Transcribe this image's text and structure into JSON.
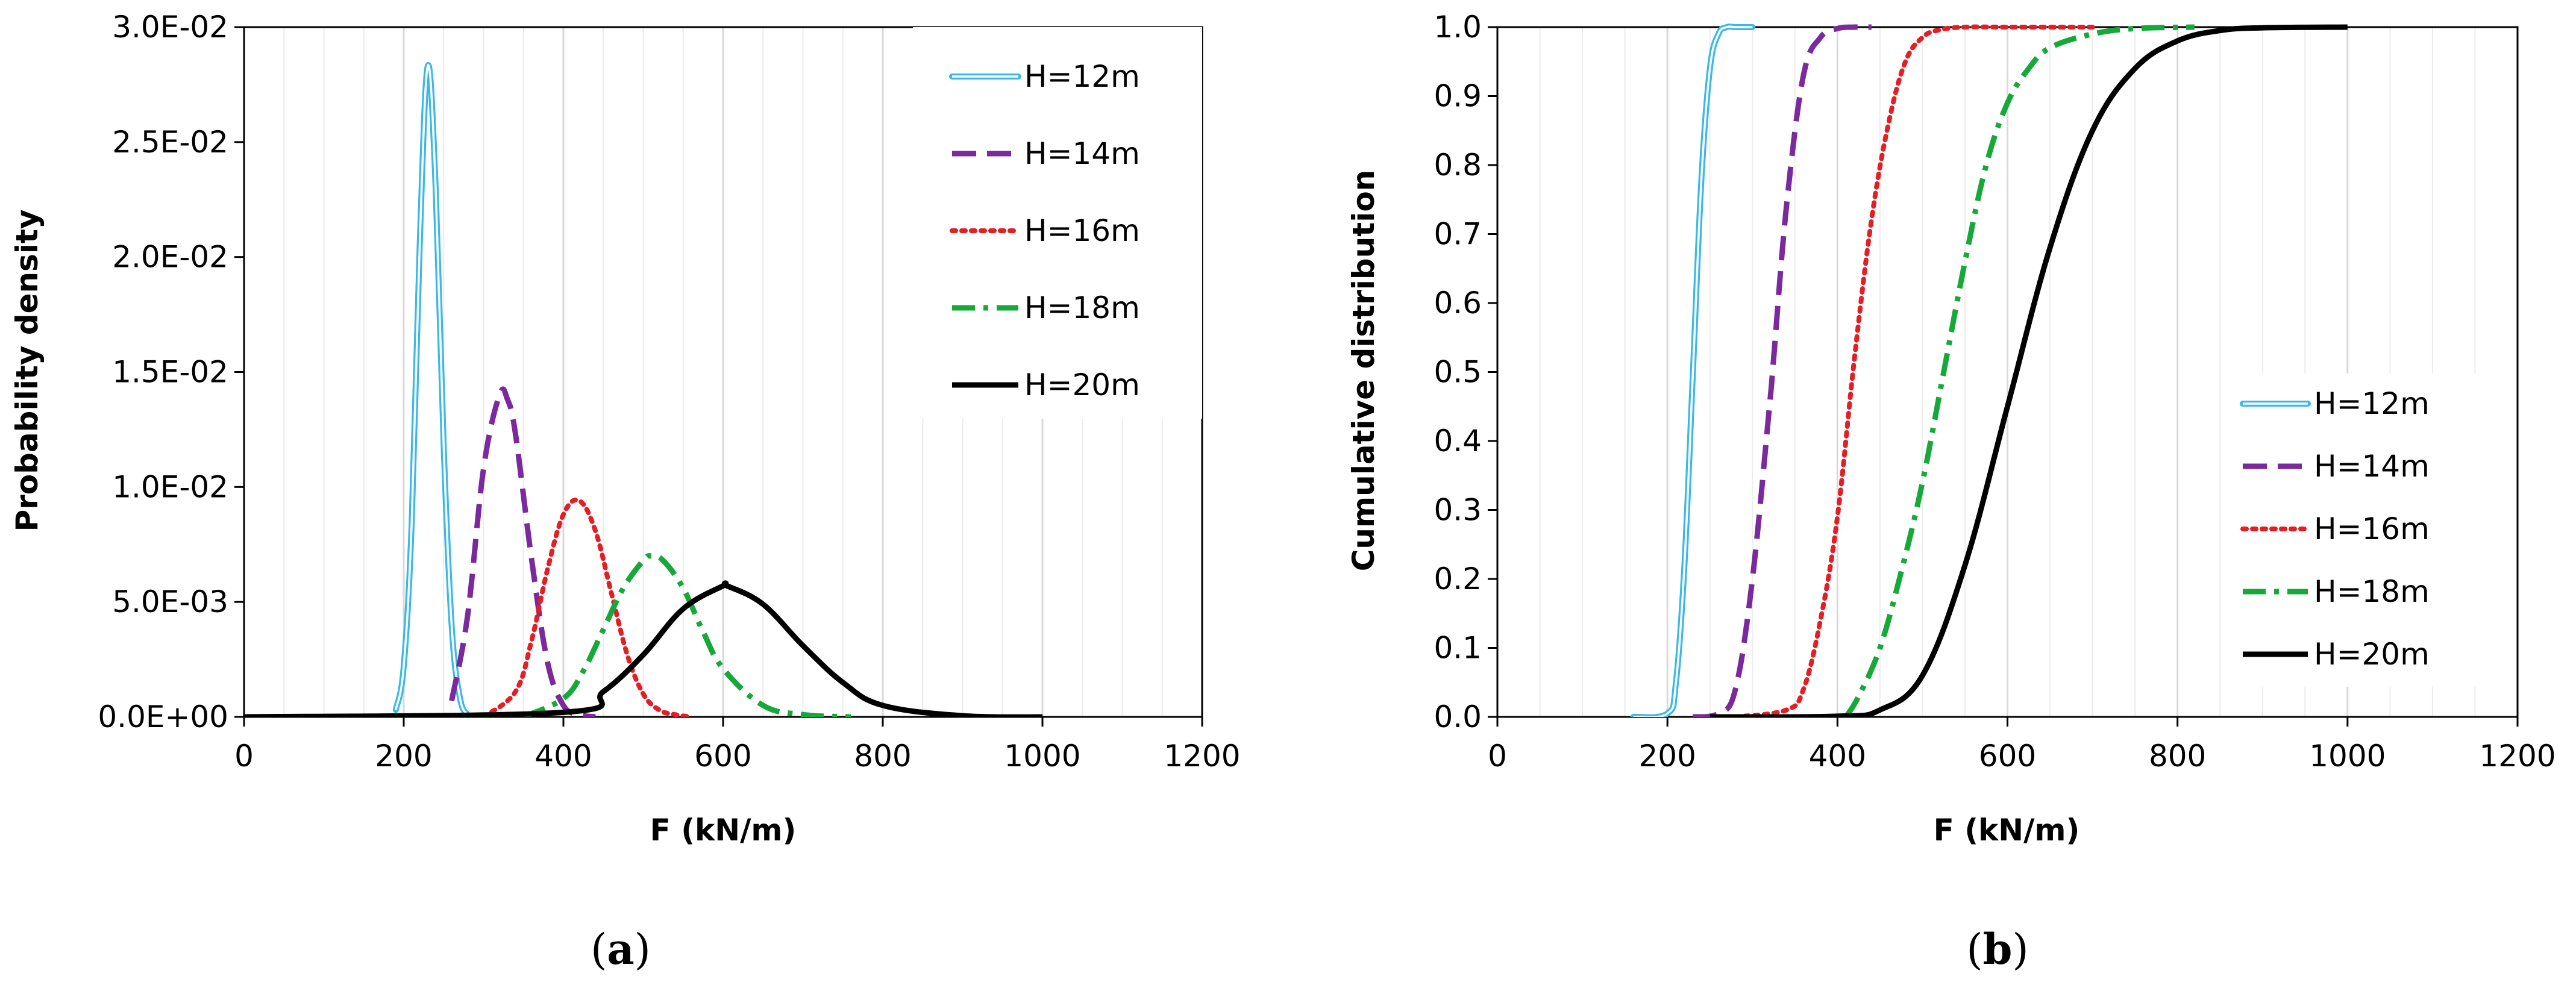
{
  "colors": {
    "H12": "#3bb8e6",
    "H14": "#7a2a9c",
    "H16": "#e31e24",
    "H18": "#17a83a",
    "H20": "#000000",
    "grid": "#d9d9d9",
    "axis": "#000000"
  },
  "chart_data": [
    {
      "id": "a",
      "type": "line",
      "panel_label": "a",
      "xlabel": "F (kN/m)",
      "ylabel": "Probability density",
      "xlim": [
        0,
        1200
      ],
      "ylim": [
        0,
        0.03
      ],
      "xticks": [
        0,
        200,
        400,
        600,
        800,
        1000,
        1200
      ],
      "xtick_labels": [
        "0",
        "200",
        "400",
        "600",
        "800",
        "1000",
        "1200"
      ],
      "yticks": [
        0,
        0.005,
        0.01,
        0.015,
        0.02,
        0.025,
        0.03
      ],
      "ytick_labels": [
        "0.0E+00",
        "5.0E-03",
        "1.0E-02",
        "1.5E-02",
        "2.0E-02",
        "2.5E-02",
        "3.0E-02"
      ],
      "grid": true,
      "legend": {
        "position": "top-right",
        "entries": [
          "H=12m",
          "H=14m",
          "H=16m",
          "H=18m",
          "H=20m"
        ]
      },
      "series": [
        {
          "name": "H=12m",
          "style": "double",
          "x_range": [
            190,
            300
          ],
          "peak_x": 232,
          "peak_y": 0.0284,
          "x": [
            190,
            200,
            210,
            220,
            230,
            240,
            250,
            260,
            270,
            280,
            290,
            300
          ],
          "y": [
            0.0003,
            0.0022,
            0.0085,
            0.0205,
            0.0283,
            0.023,
            0.0118,
            0.004,
            0.0009,
            0.0001,
            0,
            0
          ]
        },
        {
          "name": "H=14m",
          "style": "dashed",
          "x_range": [
            260,
            440
          ],
          "peak_x": 325,
          "peak_y": 0.0141,
          "x": [
            260,
            280,
            300,
            320,
            330,
            340,
            360,
            380,
            400,
            420,
            440
          ],
          "y": [
            0.0007,
            0.0044,
            0.0108,
            0.014,
            0.0138,
            0.0123,
            0.0069,
            0.0024,
            0.0005,
            0.0001,
            0
          ]
        },
        {
          "name": "H=16m",
          "style": "dotted",
          "x_range": [
            300,
            560
          ],
          "peak_x": 418,
          "peak_y": 0.0094,
          "x": [
            300,
            340,
            360,
            380,
            400,
            420,
            440,
            460,
            480,
            500,
            520,
            540,
            560
          ],
          "y": [
            0,
            0.0011,
            0.0033,
            0.0064,
            0.0088,
            0.0094,
            0.0081,
            0.0054,
            0.0027,
            0.001,
            0.0003,
            0.0001,
            0
          ]
        },
        {
          "name": "H=18m",
          "style": "dashdot",
          "x_range": [
            350,
            760
          ],
          "peak_x": 510,
          "peak_y": 0.007,
          "x": [
            350,
            400,
            425,
            450,
            475,
            500,
            510,
            525,
            550,
            575,
            600,
            650,
            700,
            760
          ],
          "y": [
            0,
            0.0008,
            0.002,
            0.0038,
            0.0056,
            0.0068,
            0.007,
            0.0068,
            0.0056,
            0.0037,
            0.0021,
            0.0005,
            0.0001,
            0
          ]
        },
        {
          "name": "H=20m",
          "style": "solid",
          "x_range": [
            0,
            1000
          ],
          "peak_x": 605,
          "peak_y": 0.0057,
          "x": [
            0,
            400,
            450,
            500,
            550,
            600,
            605,
            650,
            700,
            750,
            800,
            900,
            1000
          ],
          "y": [
            0,
            0.0002,
            0.0011,
            0.0027,
            0.0047,
            0.0057,
            0.0057,
            0.0049,
            0.0031,
            0.0015,
            0.0005,
            5e-05,
            0
          ]
        }
      ]
    },
    {
      "id": "b",
      "type": "line",
      "panel_label": "b",
      "xlabel": "F (kN/m)",
      "ylabel": "Cumulative distribution",
      "xlim": [
        0,
        1200
      ],
      "ylim": [
        0,
        1
      ],
      "xticks": [
        0,
        200,
        400,
        600,
        800,
        1000,
        1200
      ],
      "xtick_labels": [
        "0",
        "200",
        "400",
        "600",
        "800",
        "1000",
        "1200"
      ],
      "yticks": [
        0,
        0.1,
        0.2,
        0.3,
        0.4,
        0.5,
        0.6,
        0.7,
        0.8,
        0.9,
        1.0
      ],
      "ytick_labels": [
        "0.0",
        "0.1",
        "0.2",
        "0.3",
        "0.4",
        "0.5",
        "0.6",
        "0.7",
        "0.8",
        "0.9",
        "1.0"
      ],
      "grid": true,
      "legend": {
        "position": "right",
        "entries": [
          "H=12m",
          "H=14m",
          "H=16m",
          "H=18m",
          "H=20m"
        ]
      },
      "series": [
        {
          "name": "H=12m",
          "style": "double",
          "x_range": [
            160,
            300
          ],
          "x": [
            160,
            200,
            210,
            220,
            230,
            240,
            250,
            260,
            270,
            280,
            300
          ],
          "y": [
            0,
            0.005,
            0.05,
            0.22,
            0.5,
            0.78,
            0.94,
            0.99,
            1.0,
            1.0,
            1.0
          ]
        },
        {
          "name": "H=14m",
          "style": "dashed",
          "x_range": [
            230,
            440
          ],
          "x": [
            230,
            260,
            280,
            300,
            320,
            325,
            340,
            360,
            380,
            400,
            420,
            440
          ],
          "y": [
            0,
            0.005,
            0.04,
            0.2,
            0.45,
            0.52,
            0.74,
            0.93,
            0.985,
            0.998,
            1.0,
            1.0
          ]
        },
        {
          "name": "H=16m",
          "style": "dotted",
          "x_range": [
            280,
            700
          ],
          "x": [
            280,
            340,
            360,
            380,
            400,
            420,
            440,
            460,
            480,
            500,
            520,
            550,
            600,
            700
          ],
          "y": [
            0,
            0.01,
            0.04,
            0.14,
            0.29,
            0.52,
            0.72,
            0.86,
            0.95,
            0.985,
            0.996,
            1.0,
            1.0,
            1.0
          ]
        },
        {
          "name": "H=18m",
          "style": "dashdot",
          "x_range": [
            410,
            820
          ],
          "x": [
            410,
            425,
            450,
            475,
            500,
            525,
            550,
            575,
            600,
            625,
            650,
            700,
            750,
            820
          ],
          "y": [
            0,
            0.03,
            0.1,
            0.21,
            0.34,
            0.5,
            0.66,
            0.8,
            0.89,
            0.94,
            0.97,
            0.99,
            0.998,
            1.0
          ]
        },
        {
          "name": "H=20m",
          "style": "solid",
          "x_range": [
            250,
            1000
          ],
          "x": [
            250,
            400,
            450,
            500,
            550,
            600,
            650,
            700,
            750,
            800,
            850,
            900,
            1000
          ],
          "y": [
            0,
            0.001,
            0.01,
            0.06,
            0.22,
            0.45,
            0.68,
            0.85,
            0.94,
            0.98,
            0.995,
            0.999,
            1.0
          ]
        }
      ]
    }
  ]
}
